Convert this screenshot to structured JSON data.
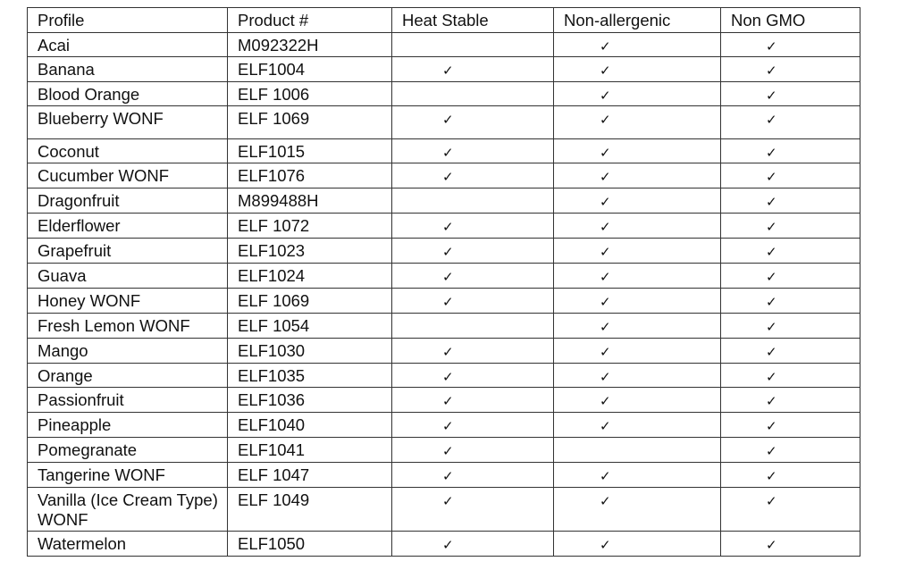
{
  "headers": [
    "Profile",
    "Product #",
    "Heat Stable",
    "Non-allergenic",
    "Non GMO"
  ],
  "check_symbol": "✓",
  "rows": [
    {
      "profile": "Acai",
      "product": "M092322H",
      "heat_stable": false,
      "non_allergenic": true,
      "non_gmo": true
    },
    {
      "profile": "Banana",
      "product": "ELF1004",
      "heat_stable": true,
      "non_allergenic": true,
      "non_gmo": true
    },
    {
      "profile": "Blood Orange",
      "product": "ELF 1006",
      "heat_stable": false,
      "non_allergenic": true,
      "non_gmo": true
    },
    {
      "profile": "Blueberry WONF",
      "product": "ELF 1069",
      "heat_stable": true,
      "non_allergenic": true,
      "non_gmo": true
    },
    {
      "profile": "Coconut",
      "product": "ELF1015",
      "heat_stable": true,
      "non_allergenic": true,
      "non_gmo": true
    },
    {
      "profile": "Cucumber WONF",
      "product": "ELF1076",
      "heat_stable": true,
      "non_allergenic": true,
      "non_gmo": true
    },
    {
      "profile": "Dragonfruit",
      "product": "M899488H",
      "heat_stable": false,
      "non_allergenic": true,
      "non_gmo": true
    },
    {
      "profile": "Elderflower",
      "product": "ELF 1072",
      "heat_stable": true,
      "non_allergenic": true,
      "non_gmo": true
    },
    {
      "profile": "Grapefruit",
      "product": "ELF1023",
      "heat_stable": true,
      "non_allergenic": true,
      "non_gmo": true
    },
    {
      "profile": "Guava",
      "product": "ELF1024",
      "heat_stable": true,
      "non_allergenic": true,
      "non_gmo": true
    },
    {
      "profile": "Honey WONF",
      "product": "ELF 1069",
      "heat_stable": true,
      "non_allergenic": true,
      "non_gmo": true
    },
    {
      "profile": "Fresh Lemon WONF",
      "product": "ELF 1054",
      "heat_stable": false,
      "non_allergenic": true,
      "non_gmo": true
    },
    {
      "profile": "Mango",
      "product": "ELF1030",
      "heat_stable": true,
      "non_allergenic": true,
      "non_gmo": true
    },
    {
      "profile": "Orange",
      "product": "ELF1035",
      "heat_stable": true,
      "non_allergenic": true,
      "non_gmo": true
    },
    {
      "profile": "Passionfruit",
      "product": "ELF1036",
      "heat_stable": true,
      "non_allergenic": true,
      "non_gmo": true
    },
    {
      "profile": "Pineapple",
      "product": "ELF1040",
      "heat_stable": true,
      "non_allergenic": true,
      "non_gmo": true
    },
    {
      "profile": "Pomegranate",
      "product": "ELF1041",
      "heat_stable": true,
      "non_allergenic": false,
      "non_gmo": true
    },
    {
      "profile": "Tangerine WONF",
      "product": "ELF 1047",
      "heat_stable": true,
      "non_allergenic": true,
      "non_gmo": true
    },
    {
      "profile": "Vanilla (Ice Cream Type) WONF",
      "product": "ELF 1049",
      "heat_stable": true,
      "non_allergenic": true,
      "non_gmo": true
    },
    {
      "profile": "Watermelon",
      "product": "ELF1050",
      "heat_stable": true,
      "non_allergenic": true,
      "non_gmo": true
    }
  ]
}
